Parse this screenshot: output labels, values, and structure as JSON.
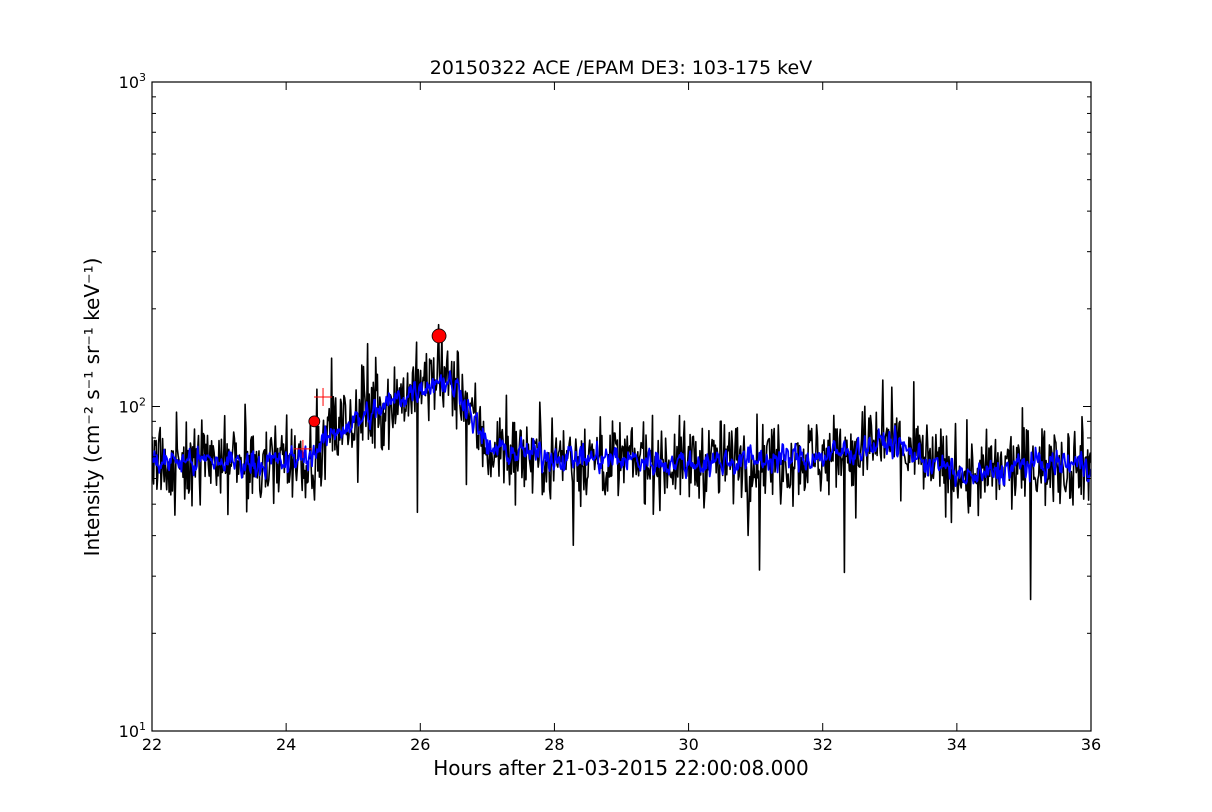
{
  "chart_data": {
    "type": "line",
    "title": "20150322 ACE /EPAM DE3: 103-175 keV",
    "xlabel": "Hours after 21-03-2015 22:00:08.000",
    "ylabel": "Intensity (cm⁻² s⁻¹ sr⁻¹ keV⁻¹)",
    "xlim": [
      22,
      36
    ],
    "ylim": [
      10,
      1000
    ],
    "yscale": "log",
    "grid": false,
    "x_ticks": [
      "22",
      "24",
      "26",
      "28",
      "30",
      "32",
      "34",
      "36"
    ],
    "y_ticks": [
      {
        "base": "10",
        "exp": "1"
      },
      {
        "base": "10",
        "exp": "2"
      },
      {
        "base": "10",
        "exp": "3"
      }
    ],
    "series": [
      {
        "color": "#000000",
        "style": "noisy",
        "profile": [
          [
            22.0,
            68
          ],
          [
            24.0,
            67
          ],
          [
            24.4,
            72
          ],
          [
            24.8,
            86
          ],
          [
            25.3,
            95
          ],
          [
            25.8,
            110
          ],
          [
            26.3,
            122
          ],
          [
            26.6,
            112
          ],
          [
            27.0,
            74
          ],
          [
            28.0,
            70
          ],
          [
            30.0,
            67
          ],
          [
            32.0,
            70
          ],
          [
            33.0,
            78
          ],
          [
            33.6,
            67
          ],
          [
            34.2,
            60
          ],
          [
            35.0,
            66
          ],
          [
            36.0,
            67
          ]
        ],
        "noise": 0.12
      },
      {
        "color": "#0000ff",
        "style": "smoothed",
        "profile": [
          [
            22.0,
            68
          ],
          [
            24.0,
            67
          ],
          [
            24.4,
            72
          ],
          [
            24.8,
            86
          ],
          [
            25.3,
            95
          ],
          [
            25.8,
            110
          ],
          [
            26.3,
            122
          ],
          [
            26.6,
            112
          ],
          [
            27.0,
            74
          ],
          [
            28.0,
            70
          ],
          [
            30.0,
            67
          ],
          [
            32.0,
            70
          ],
          [
            33.0,
            78
          ],
          [
            33.6,
            67
          ],
          [
            34.2,
            60
          ],
          [
            35.0,
            66
          ],
          [
            36.0,
            67
          ]
        ],
        "noise": 0.065
      }
    ],
    "markers": [
      {
        "x": 24.42,
        "y": 90,
        "color": "#ff0000",
        "kind": "onset"
      },
      {
        "x": 26.28,
        "y": 165,
        "color": "#ff0000",
        "kind": "peak"
      }
    ],
    "crosshair_markers": [
      {
        "x": 24.55,
        "y": 107,
        "color": "#ff0000"
      },
      {
        "x": 24.25,
        "y": 74,
        "color": "#ff0000"
      }
    ]
  }
}
